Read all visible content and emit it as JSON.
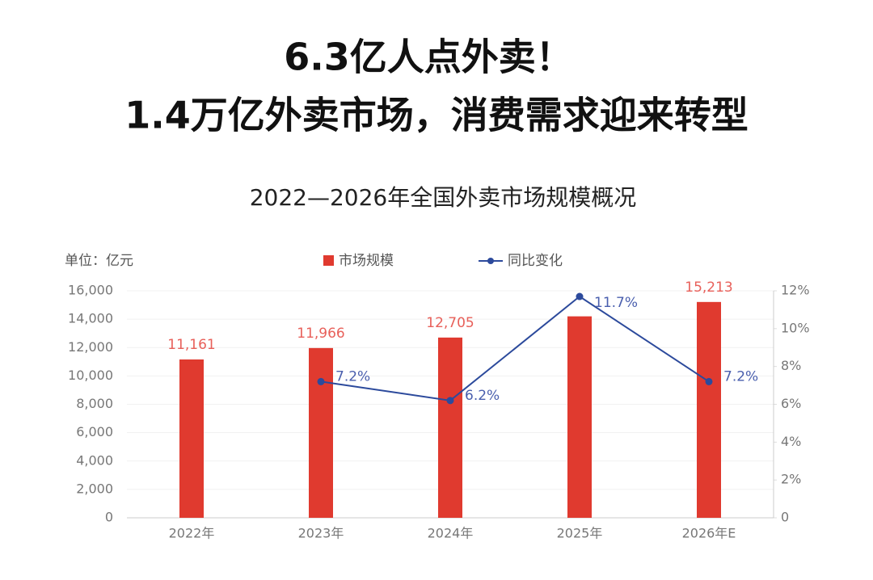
{
  "headline": [
    "6.3亿人点外卖！",
    "1.4万亿外卖市场，消费需求迎来转型"
  ],
  "chart_data": {
    "type": "bar_line",
    "title": "2022—2026年全国外卖市场规模概况",
    "unit_label": "单位：亿元",
    "categories": [
      "2022年",
      "2023年",
      "2024年",
      "2025年",
      "2026年E"
    ],
    "series": [
      {
        "name": "市场规模",
        "type": "bar",
        "color": "#e03a2f",
        "values": [
          11161,
          11966,
          12705,
          14200,
          15213
        ],
        "value_labels": [
          "11,161",
          "11,966",
          "12,705",
          null,
          "15,213"
        ]
      },
      {
        "name": "同比变化",
        "type": "line",
        "axis": "y2",
        "color": "#2c4a9c",
        "values": [
          null,
          7.2,
          6.2,
          11.7,
          7.2
        ],
        "value_labels": [
          null,
          "7.2%",
          "6.2%",
          "11.7%",
          "7.2%"
        ]
      }
    ],
    "ylim": [
      0,
      16000
    ],
    "yticks": [
      0,
      {
        "value": 2000,
        "label": "2,000"
      },
      {
        "value": 4000,
        "label": "4,000"
      },
      {
        "value": 6000,
        "label": "6,000"
      },
      {
        "value": 8000,
        "label": "8,000"
      },
      {
        "value": 10000,
        "label": "10,000"
      },
      {
        "value": 12000,
        "label": "12,000"
      },
      {
        "value": 14000,
        "label": "14,000"
      },
      {
        "value": 16000,
        "label": "16,000"
      }
    ],
    "y2lim": [
      0,
      12
    ],
    "y2ticks": [
      0,
      {
        "value": 2,
        "label": "2%"
      },
      {
        "value": 4,
        "label": "4%"
      },
      {
        "value": 6,
        "label": "6%"
      },
      {
        "value": 8,
        "label": "8%"
      },
      {
        "value": 10,
        "label": "10%"
      },
      {
        "value": 12,
        "label": "12%"
      }
    ],
    "grid": true,
    "legend": "top"
  }
}
